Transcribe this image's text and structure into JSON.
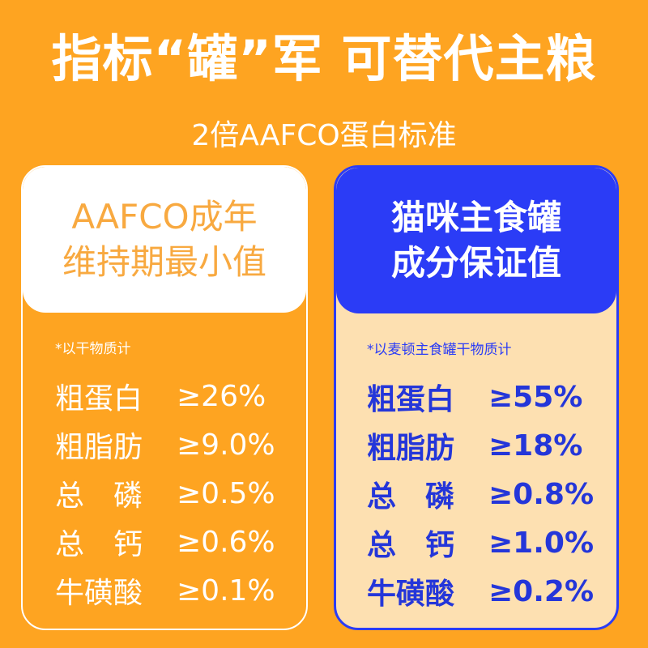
{
  "header": {
    "title": "指标“罐”军 可替代主粮",
    "subtitle": "2倍AAFCO蛋白标准"
  },
  "left_card": {
    "title_line1": "AAFCO成年",
    "title_line2": "维持期最小值",
    "note": "*以干物质计",
    "rows": [
      {
        "name": "粗蛋白",
        "value": "≥26%"
      },
      {
        "name": "粗脂肪",
        "value": "≥9.0%"
      },
      {
        "name": "总　磷",
        "value": "≥0.5%"
      },
      {
        "name": "总　钙",
        "value": "≥0.6%"
      },
      {
        "name": "牛磺酸",
        "value": "≥0.1%"
      }
    ]
  },
  "right_card": {
    "title_line1": "猫咪主食罐",
    "title_line2": "成分保证值",
    "note": "*以麦顿主食罐干物质计",
    "rows": [
      {
        "name": "粗蛋白",
        "value": "≥55%"
      },
      {
        "name": "粗脂肪",
        "value": "≥18%"
      },
      {
        "name": "总　磷",
        "value": "≥0.8%"
      },
      {
        "name": "总　钙",
        "value": "≥1.0%"
      },
      {
        "name": "牛磺酸",
        "value": "≥0.2%"
      }
    ]
  },
  "colors": {
    "background": "#fea421",
    "blue": "#2b3cf6",
    "peach": "#fde0b1"
  }
}
